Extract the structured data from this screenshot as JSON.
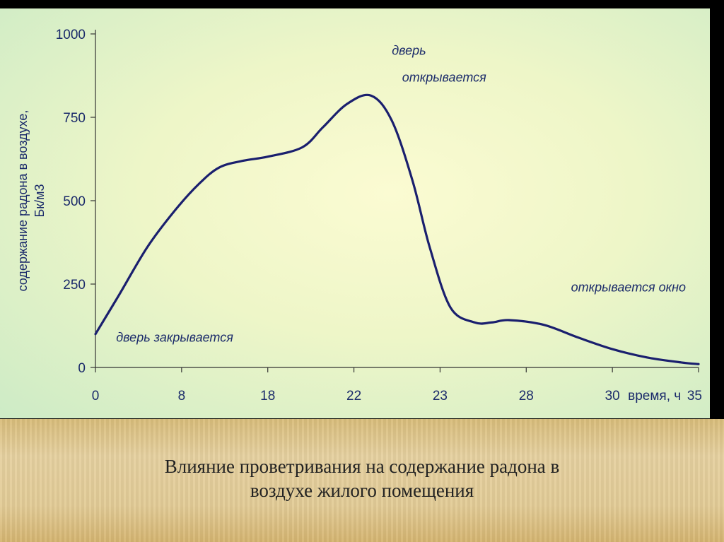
{
  "caption": {
    "line1": "Влияние проветривания на содержание радона в",
    "line2": "воздухе жилого помещения"
  },
  "colors": {
    "line": "#1a1f6e",
    "text": "#1a2a6a",
    "panel": "#e8f4c6",
    "caption_bg": "#e3cc97"
  },
  "chart_data": {
    "type": "line",
    "title": "",
    "ylabel": "содержание радона в воздухе, Бк/м3",
    "ylabel_lines": [
      "содержание радона в воздухе,",
      "Бк/м3"
    ],
    "xlabel": "время, ч",
    "ylim": [
      0,
      1000
    ],
    "yticks": [
      0,
      250,
      500,
      750,
      1000
    ],
    "xticks": [
      "0",
      "8",
      "18",
      "22",
      "23",
      "28",
      "30",
      "35"
    ],
    "x_after_label": "время, ч",
    "grid": false,
    "series": [
      {
        "name": "",
        "points": [
          {
            "x": 0,
            "y": 100
          },
          {
            "x": 0.7,
            "y": 220
          },
          {
            "x": 1.5,
            "y": 360
          },
          {
            "x": 2.3,
            "y": 470
          },
          {
            "x": 3.0,
            "y": 550
          },
          {
            "x": 3.6,
            "y": 600
          },
          {
            "x": 4.3,
            "y": 620
          },
          {
            "x": 5.0,
            "y": 632
          },
          {
            "x": 6.0,
            "y": 660
          },
          {
            "x": 6.6,
            "y": 720
          },
          {
            "x": 7.3,
            "y": 790
          },
          {
            "x": 8.0,
            "y": 815
          },
          {
            "x": 8.6,
            "y": 740
          },
          {
            "x": 9.2,
            "y": 560
          },
          {
            "x": 9.7,
            "y": 360
          },
          {
            "x": 10.3,
            "y": 180
          },
          {
            "x": 11.0,
            "y": 135
          },
          {
            "x": 11.5,
            "y": 135
          },
          {
            "x": 12.0,
            "y": 142
          },
          {
            "x": 13.0,
            "y": 128
          },
          {
            "x": 14.0,
            "y": 90
          },
          {
            "x": 15.0,
            "y": 55
          },
          {
            "x": 16.0,
            "y": 30
          },
          {
            "x": 17.0,
            "y": 15
          },
          {
            "x": 17.5,
            "y": 10
          }
        ]
      }
    ],
    "annotations": [
      {
        "text": "дверь закрывается",
        "x": 0.6,
        "y": 90
      },
      {
        "text": "дверь",
        "x": 8.6,
        "y": 950
      },
      {
        "text": "открывается",
        "x": 8.9,
        "y": 870
      },
      {
        "text": "открывается окно",
        "x": 13.8,
        "y": 240
      }
    ]
  }
}
